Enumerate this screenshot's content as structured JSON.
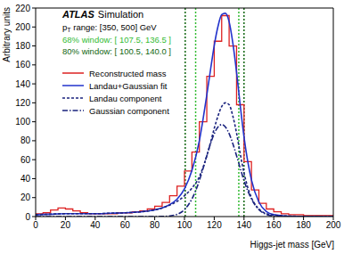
{
  "chart_data": {
    "type": "histogram",
    "title": "ATLAS",
    "subtitle": "Simulation",
    "annotations": [
      "pT range: [350, 500] GeV"
    ],
    "x_label": "Higgs-jet mass [GeV]",
    "y_label": "Arbitrary units",
    "xlim": [
      0,
      200
    ],
    "ylim": [
      0,
      220
    ],
    "xticks": [
      0,
      20,
      40,
      60,
      80,
      100,
      120,
      140,
      160,
      180,
      200
    ],
    "yticks": [
      0,
      20,
      40,
      60,
      80,
      100,
      120,
      140,
      160,
      180,
      200,
      220
    ],
    "grid": false,
    "legend": "upper left",
    "windows": [
      {
        "label": "68% window: [ 107.5, 136.5 ]",
        "values": [
          107.5,
          136.5
        ],
        "color": "#33bb33",
        "line_style": "dotted"
      },
      {
        "label": "80% window: [ 100.5, 140.0 ]",
        "values": [
          100.5,
          140.0
        ],
        "color": "#116611",
        "line_style": "dotted"
      }
    ],
    "series": [
      {
        "name": "Reconstructed mass",
        "type": "histogram",
        "color": "#dd2222",
        "line_style": "solid",
        "bins": [
          0,
          5,
          10,
          15,
          20,
          25,
          30,
          35,
          40,
          45,
          50,
          55,
          60,
          65,
          70,
          75,
          80,
          85,
          90,
          95,
          100,
          105,
          110,
          115,
          120,
          125,
          130,
          135,
          140,
          145,
          150,
          155,
          160,
          165,
          170,
          175,
          180,
          185,
          190,
          195,
          200
        ],
        "values": [
          3,
          4,
          7,
          9,
          8,
          6,
          4,
          3,
          3,
          3,
          3,
          4,
          4,
          5,
          6,
          8,
          11,
          15,
          22,
          32,
          48,
          68,
          100,
          148,
          185,
          212,
          180,
          118,
          58,
          28,
          14,
          8,
          5,
          3,
          2,
          2,
          1,
          1,
          1,
          1
        ]
      },
      {
        "name": "Landau+Gaussian fit",
        "type": "line",
        "color": "#2233cc",
        "line_style": "solid",
        "x": [
          0,
          10,
          20,
          30,
          40,
          50,
          60,
          70,
          80,
          85,
          90,
          95,
          100,
          105,
          110,
          112.5,
          115,
          117.5,
          120,
          122.5,
          125,
          127.5,
          130,
          132.5,
          135,
          137.5,
          140,
          145,
          150,
          155,
          160,
          170,
          180,
          190,
          200
        ],
        "values": [
          2,
          2.5,
          3,
          3,
          3,
          3.5,
          4,
          5,
          7,
          9.1,
          12.6,
          18.3,
          29.3,
          48.6,
          80,
          102.8,
          128.2,
          154.9,
          180.5,
          200.5,
          213,
          214.5,
          205.5,
          182.9,
          152.2,
          116.8,
          84,
          38.6,
          15.3,
          5.3,
          2.1,
          0.5,
          0.2,
          0.1,
          0
        ]
      },
      {
        "name": "Landau component",
        "type": "line",
        "color": "#1a237e",
        "line_style": "dashed",
        "x": [
          0,
          10,
          20,
          30,
          40,
          50,
          60,
          70,
          80,
          85,
          90,
          95,
          100,
          105,
          110,
          112.5,
          115,
          117.5,
          120,
          122.5,
          125,
          127.5,
          130,
          132.5,
          135,
          137.5,
          140,
          145,
          150,
          155,
          160,
          170,
          180,
          190,
          200
        ],
        "values": [
          2,
          2.5,
          3,
          3,
          3,
          3.5,
          4,
          5,
          7,
          9,
          12,
          16,
          22,
          30,
          42,
          52,
          64,
          78,
          93,
          106,
          116,
          120,
          118,
          106,
          88,
          66,
          46,
          20,
          8,
          3,
          1.5,
          0.5,
          0.2,
          0.1,
          0
        ]
      },
      {
        "name": "Gaussian component",
        "type": "line",
        "color": "#1a237e",
        "line_style": "dashdot",
        "x": [
          0,
          10,
          20,
          30,
          40,
          50,
          60,
          70,
          80,
          85,
          90,
          95,
          100,
          105,
          110,
          112.5,
          115,
          117.5,
          120,
          122.5,
          125,
          127.5,
          130,
          132.5,
          135,
          137.5,
          140,
          145,
          150,
          155,
          160,
          170,
          180,
          190,
          200
        ],
        "values": [
          0,
          0,
          0,
          0,
          0,
          0,
          0,
          0,
          0,
          0.1,
          0.6,
          2.3,
          7.3,
          18.6,
          38,
          50.8,
          64.2,
          76.9,
          87.5,
          94.5,
          97,
          94.5,
          87.5,
          76.9,
          64.2,
          50.8,
          38,
          18.6,
          7.3,
          2.3,
          0.6,
          0,
          0,
          0,
          0
        ]
      }
    ]
  }
}
